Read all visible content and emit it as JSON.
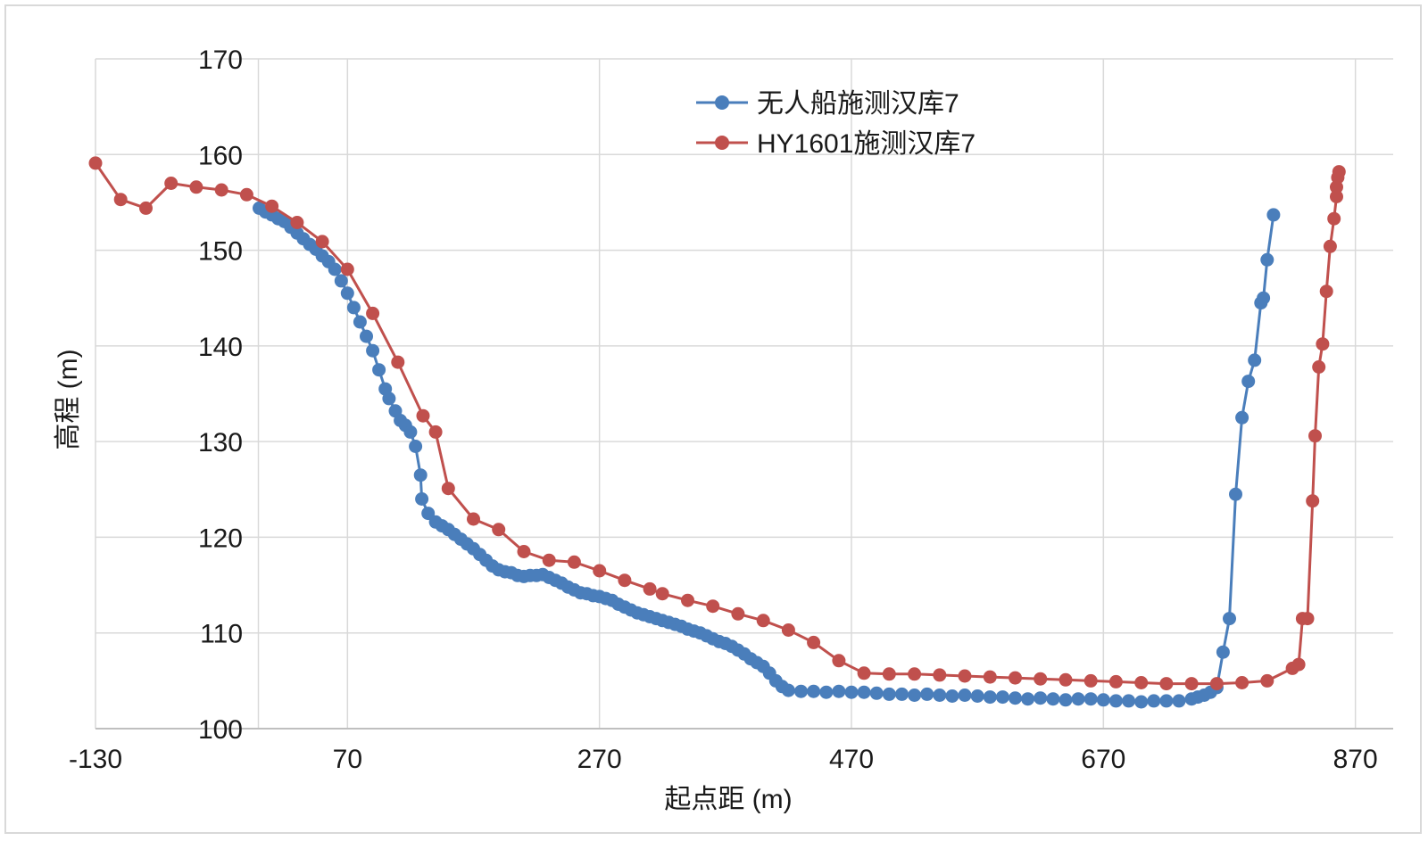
{
  "chart_data": {
    "type": "line",
    "title": "",
    "xlabel": "起点距 (m)",
    "ylabel": "高程 (m)",
    "xlim": [
      -130,
      900
    ],
    "ylim": [
      100,
      170
    ],
    "x_ticks": [
      -130,
      70,
      270,
      470,
      670,
      870
    ],
    "y_ticks": [
      100,
      110,
      120,
      130,
      140,
      150,
      160,
      170
    ],
    "grid": true,
    "legend_position": "top-center",
    "series": [
      {
        "name": "无人船施测汉库7",
        "color": "#4a7ebb",
        "points": [
          [
            0,
            154.4
          ],
          [
            5,
            154.0
          ],
          [
            10,
            153.7
          ],
          [
            15,
            153.3
          ],
          [
            20,
            153.0
          ],
          [
            25,
            152.4
          ],
          [
            30,
            151.8
          ],
          [
            35,
            151.2
          ],
          [
            40,
            150.6
          ],
          [
            45,
            150.1
          ],
          [
            50,
            149.4
          ],
          [
            55,
            148.8
          ],
          [
            60,
            148.0
          ],
          [
            65,
            146.8
          ],
          [
            70,
            145.5
          ],
          [
            75,
            144.0
          ],
          [
            80,
            142.5
          ],
          [
            85,
            141.0
          ],
          [
            90,
            139.5
          ],
          [
            95,
            137.5
          ],
          [
            100,
            135.5
          ],
          [
            103,
            134.5
          ],
          [
            108,
            133.2
          ],
          [
            112,
            132.2
          ],
          [
            116,
            131.7
          ],
          [
            120,
            131.0
          ],
          [
            124,
            129.5
          ],
          [
            128,
            126.5
          ],
          [
            129,
            124.0
          ],
          [
            134,
            122.5
          ],
          [
            140,
            121.6
          ],
          [
            145,
            121.2
          ],
          [
            150,
            120.8
          ],
          [
            155,
            120.3
          ],
          [
            160,
            119.8
          ],
          [
            165,
            119.3
          ],
          [
            170,
            118.8
          ],
          [
            175,
            118.2
          ],
          [
            180,
            117.6
          ],
          [
            185,
            117.0
          ],
          [
            190,
            116.6
          ],
          [
            195,
            116.4
          ],
          [
            200,
            116.3
          ],
          [
            205,
            116.0
          ],
          [
            210,
            115.9
          ],
          [
            215,
            116.0
          ],
          [
            220,
            116.0
          ],
          [
            225,
            116.1
          ],
          [
            230,
            115.8
          ],
          [
            235,
            115.5
          ],
          [
            240,
            115.2
          ],
          [
            245,
            114.8
          ],
          [
            250,
            114.5
          ],
          [
            255,
            114.2
          ],
          [
            260,
            114.1
          ],
          [
            265,
            113.9
          ],
          [
            270,
            113.8
          ],
          [
            275,
            113.6
          ],
          [
            280,
            113.4
          ],
          [
            285,
            113.0
          ],
          [
            290,
            112.7
          ],
          [
            295,
            112.4
          ],
          [
            300,
            112.1
          ],
          [
            305,
            111.9
          ],
          [
            310,
            111.7
          ],
          [
            315,
            111.5
          ],
          [
            320,
            111.3
          ],
          [
            325,
            111.1
          ],
          [
            330,
            110.9
          ],
          [
            335,
            110.7
          ],
          [
            340,
            110.4
          ],
          [
            345,
            110.2
          ],
          [
            350,
            110.0
          ],
          [
            355,
            109.7
          ],
          [
            360,
            109.4
          ],
          [
            365,
            109.1
          ],
          [
            370,
            108.9
          ],
          [
            375,
            108.6
          ],
          [
            380,
            108.2
          ],
          [
            385,
            107.8
          ],
          [
            390,
            107.3
          ],
          [
            395,
            106.9
          ],
          [
            400,
            106.5
          ],
          [
            405,
            105.8
          ],
          [
            410,
            105.0
          ],
          [
            415,
            104.4
          ],
          [
            420,
            104.0
          ],
          [
            430,
            103.9
          ],
          [
            440,
            103.9
          ],
          [
            450,
            103.8
          ],
          [
            460,
            103.9
          ],
          [
            470,
            103.8
          ],
          [
            480,
            103.8
          ],
          [
            490,
            103.7
          ],
          [
            500,
            103.6
          ],
          [
            510,
            103.6
          ],
          [
            520,
            103.5
          ],
          [
            530,
            103.6
          ],
          [
            540,
            103.5
          ],
          [
            550,
            103.4
          ],
          [
            560,
            103.5
          ],
          [
            570,
            103.4
          ],
          [
            580,
            103.3
          ],
          [
            590,
            103.3
          ],
          [
            600,
            103.2
          ],
          [
            610,
            103.1
          ],
          [
            620,
            103.2
          ],
          [
            630,
            103.1
          ],
          [
            640,
            103.0
          ],
          [
            650,
            103.1
          ],
          [
            660,
            103.1
          ],
          [
            670,
            103.0
          ],
          [
            680,
            102.9
          ],
          [
            690,
            102.9
          ],
          [
            700,
            102.8
          ],
          [
            710,
            102.9
          ],
          [
            720,
            102.9
          ],
          [
            730,
            102.9
          ],
          [
            740,
            103.1
          ],
          [
            745,
            103.3
          ],
          [
            750,
            103.5
          ],
          [
            755,
            103.8
          ],
          [
            760,
            104.3
          ],
          [
            765,
            108.0
          ],
          [
            770,
            111.5
          ],
          [
            775,
            124.5
          ],
          [
            780,
            132.5
          ],
          [
            785,
            136.3
          ],
          [
            790,
            138.5
          ],
          [
            795,
            144.5
          ],
          [
            797,
            145.0
          ],
          [
            800,
            149.0
          ],
          [
            805,
            153.7
          ]
        ]
      },
      {
        "name": "HY1601施测汉库7",
        "color": "#c0504d",
        "points": [
          [
            -130,
            159.1
          ],
          [
            -110,
            155.3
          ],
          [
            -90,
            154.4
          ],
          [
            -70,
            157.0
          ],
          [
            -50,
            156.6
          ],
          [
            -30,
            156.3
          ],
          [
            -10,
            155.8
          ],
          [
            10,
            154.6
          ],
          [
            30,
            152.9
          ],
          [
            50,
            150.9
          ],
          [
            70,
            148.0
          ],
          [
            90,
            143.4
          ],
          [
            110,
            138.3
          ],
          [
            130,
            132.7
          ],
          [
            140,
            131.0
          ],
          [
            150,
            125.1
          ],
          [
            170,
            121.9
          ],
          [
            190,
            120.8
          ],
          [
            210,
            118.5
          ],
          [
            230,
            117.6
          ],
          [
            250,
            117.4
          ],
          [
            270,
            116.5
          ],
          [
            290,
            115.5
          ],
          [
            310,
            114.6
          ],
          [
            320,
            114.1
          ],
          [
            340,
            113.4
          ],
          [
            360,
            112.8
          ],
          [
            380,
            112.0
          ],
          [
            400,
            111.3
          ],
          [
            420,
            110.3
          ],
          [
            440,
            109.0
          ],
          [
            460,
            107.1
          ],
          [
            480,
            105.8
          ],
          [
            500,
            105.7
          ],
          [
            520,
            105.7
          ],
          [
            540,
            105.6
          ],
          [
            560,
            105.5
          ],
          [
            580,
            105.4
          ],
          [
            600,
            105.3
          ],
          [
            620,
            105.2
          ],
          [
            640,
            105.1
          ],
          [
            660,
            105.0
          ],
          [
            680,
            104.9
          ],
          [
            700,
            104.8
          ],
          [
            720,
            104.7
          ],
          [
            740,
            104.7
          ],
          [
            760,
            104.7
          ],
          [
            780,
            104.8
          ],
          [
            800,
            105.0
          ],
          [
            820,
            106.3
          ],
          [
            825,
            106.7
          ],
          [
            828,
            111.5
          ],
          [
            832,
            111.5
          ],
          [
            836,
            123.8
          ],
          [
            838,
            130.6
          ],
          [
            841,
            137.8
          ],
          [
            844,
            140.2
          ],
          [
            847,
            145.7
          ],
          [
            850,
            150.4
          ],
          [
            853,
            153.3
          ],
          [
            855,
            155.6
          ],
          [
            855,
            156.6
          ],
          [
            856,
            157.6
          ],
          [
            857,
            158.2
          ]
        ]
      }
    ]
  }
}
